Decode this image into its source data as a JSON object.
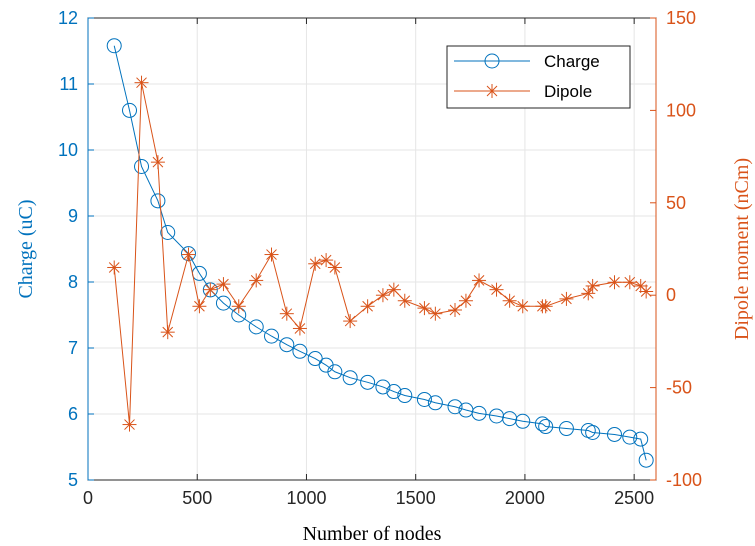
{
  "chart_data": {
    "type": "line",
    "xlabel": "Number of nodes",
    "ylabel_left": "Charge (uC)",
    "ylabel_right": "Dipole moment (nCm)",
    "xlim": [
      0,
      2600
    ],
    "ylim_left": [
      5,
      12
    ],
    "ylim_right": [
      -100,
      150
    ],
    "x_ticks": [
      0,
      500,
      1000,
      1500,
      2000,
      2500
    ],
    "y_ticks_left": [
      5,
      6,
      7,
      8,
      9,
      10,
      11,
      12
    ],
    "y_ticks_right": [
      -100,
      -50,
      0,
      50,
      100,
      150
    ],
    "grid": true,
    "legend_position": "top-right",
    "colors": {
      "charge": "#0072bd",
      "dipole": "#d95319",
      "grid": "#e6e6e6"
    },
    "series": [
      {
        "name": "Charge",
        "axis": "left",
        "marker": "circle",
        "x": [
          120,
          190,
          245,
          320,
          365,
          460,
          510,
          560,
          620,
          690,
          770,
          840,
          910,
          970,
          1040,
          1090,
          1130,
          1200,
          1280,
          1350,
          1400,
          1450,
          1540,
          1590,
          1680,
          1730,
          1790,
          1870,
          1930,
          1990,
          2080,
          2095,
          2190,
          2290,
          2310,
          2410,
          2480,
          2530,
          2555
        ],
        "values": [
          11.58,
          10.6,
          9.75,
          9.23,
          8.75,
          8.43,
          8.13,
          7.88,
          7.68,
          7.5,
          7.32,
          7.18,
          7.05,
          6.95,
          6.84,
          6.74,
          6.64,
          6.55,
          6.48,
          6.41,
          6.34,
          6.28,
          6.22,
          6.17,
          6.11,
          6.06,
          6.01,
          5.97,
          5.93,
          5.89,
          5.85,
          5.81,
          5.78,
          5.75,
          5.72,
          5.69,
          5.65,
          5.62,
          5.3
        ]
      },
      {
        "name": "Dipole",
        "axis": "right",
        "marker": "asterisk",
        "x": [
          120,
          190,
          245,
          320,
          365,
          460,
          510,
          560,
          620,
          690,
          770,
          840,
          910,
          970,
          1040,
          1090,
          1130,
          1200,
          1280,
          1350,
          1400,
          1450,
          1540,
          1590,
          1680,
          1730,
          1790,
          1870,
          1930,
          1990,
          2080,
          2095,
          2190,
          2290,
          2310,
          2410,
          2480,
          2530,
          2555
        ],
        "values": [
          15,
          -70,
          115,
          72,
          -20,
          22,
          -6,
          3,
          6,
          -6,
          8,
          22,
          -10,
          -18,
          17,
          19,
          15,
          -14,
          -6,
          0,
          3,
          -3,
          -7,
          -10,
          -8,
          -3,
          8,
          3,
          -3,
          -6,
          -6,
          -6,
          -2,
          1,
          5,
          7,
          7,
          5,
          2
        ]
      }
    ]
  }
}
